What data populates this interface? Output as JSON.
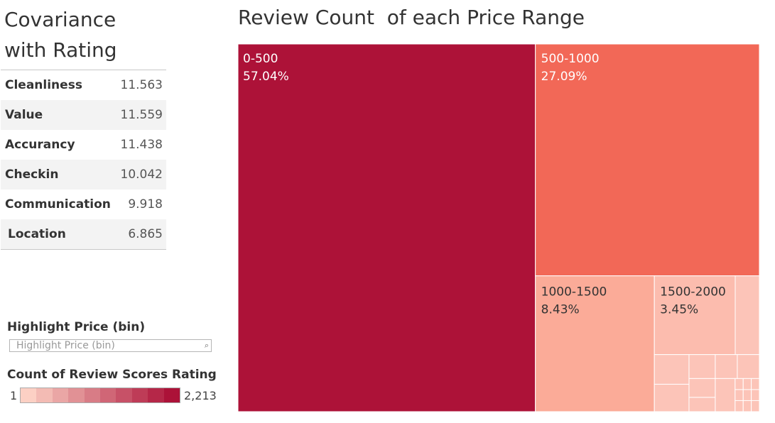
{
  "covariance": {
    "title_line1": "Covariance",
    "title_line2": "with Rating",
    "rows": [
      {
        "label": "Cleanliness",
        "value": "11.563"
      },
      {
        "label": "Value",
        "value": "11.559"
      },
      {
        "label": "Accurancy",
        "value": "11.438"
      },
      {
        "label": "Checkin",
        "value": "10.042"
      },
      {
        "label": "Communication",
        "value": "9.918"
      },
      {
        "label": "Location",
        "value": "6.865"
      }
    ]
  },
  "highlight": {
    "title": "Highlight Price (bin)",
    "placeholder": "Highlight Price (bin)",
    "icon": "search-icon"
  },
  "legend": {
    "title": "Count of Review Scores Rating",
    "min": "1",
    "max": "2,213",
    "color_low": "#fcd0c4",
    "color_high": "#ac1238"
  },
  "chart_data": {
    "type": "treemap",
    "title": "Review Count  of each Price Range",
    "series": [
      {
        "name": "0-500",
        "share_label": "57.04%",
        "value": 57.04,
        "color": "#ad1238"
      },
      {
        "name": "500-1000",
        "share_label": "27.09%",
        "value": 27.09,
        "color": "#f26857"
      },
      {
        "name": "1000-1500",
        "share_label": "8.43%",
        "value": 8.43,
        "color": "#fbab98"
      },
      {
        "name": "1500-2000",
        "share_label": "3.45%",
        "value": 3.45,
        "color": "#fcbcae"
      }
    ],
    "other_color": "#fcc4b8"
  }
}
